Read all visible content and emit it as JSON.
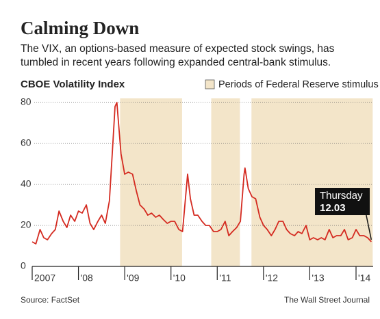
{
  "chart_data": {
    "type": "line",
    "title": "Calming Down",
    "subtitle": [
      "The VIX, an options-based measure of expected stock swings, has",
      "tumbled in recent years following expanded central-bank stimulus."
    ],
    "y_label": "CBOE Volatility Index",
    "legend_label": "Periods of Federal Reserve stimulus",
    "shade_color": "#f3e5c9",
    "periods": [
      [
        2008.9,
        2010.24
      ],
      [
        2010.87,
        2011.49
      ],
      [
        2011.74,
        2014.36
      ]
    ],
    "annotation": {
      "label": "Thursday",
      "value_label": "12.03"
    },
    "source": "Source: FactSet",
    "credit": "The Wall Street Journal",
    "grid": true,
    "xlim": [
      2007,
      2014.37
    ],
    "ylim": [
      0,
      80
    ],
    "yticks": [
      0,
      20,
      40,
      60,
      80
    ],
    "xticks": [
      {
        "value": 2007,
        "label": "2007"
      },
      {
        "value": 2008,
        "label": "'08"
      },
      {
        "value": 2009,
        "label": "'09"
      },
      {
        "value": 2010,
        "label": "'10"
      },
      {
        "value": 2011,
        "label": "'11"
      },
      {
        "value": 2012,
        "label": "'12"
      },
      {
        "value": 2013,
        "label": "'13"
      },
      {
        "value": 2014,
        "label": "'14"
      }
    ],
    "x": [
      2007.0,
      2007.08,
      2007.17,
      2007.25,
      2007.33,
      2007.42,
      2007.5,
      2007.58,
      2007.67,
      2007.75,
      2007.83,
      2007.92,
      2008.0,
      2008.08,
      2008.17,
      2008.25,
      2008.33,
      2008.42,
      2008.5,
      2008.58,
      2008.67,
      2008.75,
      2008.79,
      2008.83,
      2008.92,
      2009.0,
      2009.08,
      2009.17,
      2009.25,
      2009.33,
      2009.42,
      2009.5,
      2009.58,
      2009.67,
      2009.75,
      2009.83,
      2009.92,
      2010.0,
      2010.08,
      2010.17,
      2010.25,
      2010.36,
      2010.42,
      2010.5,
      2010.58,
      2010.67,
      2010.75,
      2010.83,
      2010.92,
      2011.0,
      2011.08,
      2011.17,
      2011.25,
      2011.33,
      2011.42,
      2011.5,
      2011.58,
      2011.6,
      2011.67,
      2011.75,
      2011.83,
      2011.92,
      2012.0,
      2012.08,
      2012.17,
      2012.25,
      2012.33,
      2012.42,
      2012.5,
      2012.58,
      2012.67,
      2012.75,
      2012.83,
      2012.92,
      2013.0,
      2013.08,
      2013.17,
      2013.25,
      2013.33,
      2013.42,
      2013.5,
      2013.58,
      2013.67,
      2013.75,
      2013.83,
      2013.92,
      2014.0,
      2014.08,
      2014.17,
      2014.25,
      2014.33
    ],
    "series": [
      {
        "name": "CBOE Volatility Index",
        "color": "#d42a20",
        "values": [
          12,
          11,
          18,
          14,
          13,
          16,
          18,
          27,
          22,
          19,
          25,
          22,
          27,
          26,
          30,
          21,
          18,
          22,
          25,
          21,
          32,
          62,
          78,
          80,
          55,
          45,
          46,
          45,
          37,
          30,
          28,
          25,
          26,
          24,
          25,
          23,
          21,
          22,
          22,
          18,
          17,
          45,
          33,
          25,
          25,
          22,
          20,
          20,
          17,
          17,
          18,
          22,
          15,
          17,
          19,
          22,
          45,
          48,
          38,
          34,
          33,
          24,
          20,
          18,
          15,
          18,
          22,
          22,
          18,
          16,
          15,
          17,
          16,
          20,
          13,
          14,
          13,
          14,
          13,
          18,
          14,
          15,
          15,
          18,
          13,
          14,
          18,
          15,
          15,
          14,
          12.03
        ]
      }
    ]
  }
}
